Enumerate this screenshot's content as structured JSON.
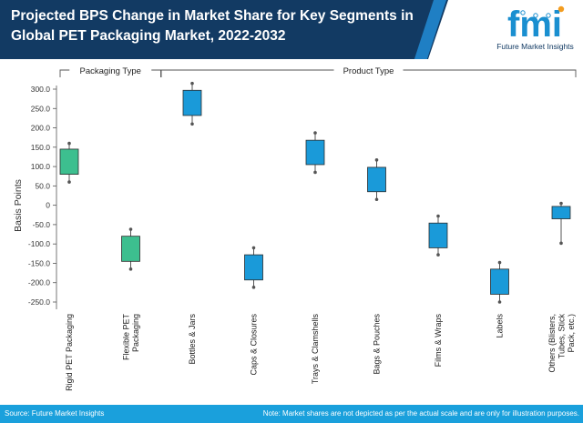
{
  "header": {
    "title": "Projected BPS Change in Market Share for Key Segments in Global PET Packaging Market, 2022-2032",
    "logo_letters": "fmi",
    "logo_text": "Future Market Insights"
  },
  "footer": {
    "source": "Source: Future Market Insights",
    "note": "Note: Market shares are not depicted as per the actual scale and are only for illustration purposes."
  },
  "colors": {
    "header_bg": "#123a63",
    "accent_blue": "#1aa0dc",
    "box_green": "#3dbf8f",
    "box_blue": "#1a9ad9",
    "footer_bg": "#1aa0dc"
  },
  "chart_data": {
    "type": "box",
    "title": "Projected BPS Change in Market Share for Key Segments in Global PET Packaging Market, 2022-2032",
    "xlabel": "",
    "ylabel": "Basis Points",
    "ylim": [
      -250,
      300
    ],
    "yticks": [
      300,
      250,
      200,
      150,
      100,
      50,
      0,
      -50,
      -100,
      -150,
      -200,
      -250
    ],
    "ytick_labels": [
      "300.0",
      "250.0",
      "200.0",
      "150.0",
      "100.0",
      "50.0",
      "0",
      "-50.0",
      "-100.0",
      "-150.0",
      "-200.0",
      "-250.0"
    ],
    "groups": [
      {
        "label": "Packaging Type",
        "from": 0,
        "to": 1
      },
      {
        "label": "Product Type",
        "from": 2,
        "to": 8
      }
    ],
    "categories": [
      {
        "name": "Rigid PET Packaging",
        "lines": [
          "Rigid PET Packaging"
        ],
        "whisker_low": 60,
        "box_low": 80,
        "box_high": 145,
        "whisker_high": 160,
        "color": "#3dbf8f"
      },
      {
        "name": "Flexible PET Packaging",
        "lines": [
          "Flexible PET",
          "Packaging"
        ],
        "whisker_low": -165,
        "box_low": -145,
        "box_high": -80,
        "whisker_high": -62,
        "color": "#3dbf8f"
      },
      {
        "name": "Bottles & Jars",
        "lines": [
          "Bottles & Jars"
        ],
        "whisker_low": 210,
        "box_low": 232,
        "box_high": 297,
        "whisker_high": 315,
        "color": "#1a9ad9"
      },
      {
        "name": "Caps & Closures",
        "lines": [
          "Caps & Closures"
        ],
        "whisker_low": -212,
        "box_low": -193,
        "box_high": -128,
        "whisker_high": -110,
        "color": "#1a9ad9"
      },
      {
        "name": "Trays & Clamshells",
        "lines": [
          "Trays & Clamshells"
        ],
        "whisker_low": 85,
        "box_low": 105,
        "box_high": 168,
        "whisker_high": 187,
        "color": "#1a9ad9"
      },
      {
        "name": "Bags & Pouches",
        "lines": [
          "Bags & Pouches"
        ],
        "whisker_low": 15,
        "box_low": 35,
        "box_high": 98,
        "whisker_high": 117,
        "color": "#1a9ad9"
      },
      {
        "name": "Films & Wraps",
        "lines": [
          "Films & Wraps"
        ],
        "whisker_low": -128,
        "box_low": -110,
        "box_high": -46,
        "whisker_high": -28,
        "color": "#1a9ad9"
      },
      {
        "name": "Labels",
        "lines": [
          "Labels"
        ],
        "whisker_low": -250,
        "box_low": -230,
        "box_high": -165,
        "whisker_high": -148,
        "color": "#1a9ad9"
      },
      {
        "name": "Others (Blisters, Tubes, Stick Pack, etc.)",
        "lines": [
          "Others (Blisters,",
          "Tubes, Stick",
          "Pack, etc.)"
        ],
        "whisker_low": -98,
        "box_low": -35,
        "box_high": -3,
        "whisker_high": 5,
        "color": "#1a9ad9"
      }
    ]
  }
}
